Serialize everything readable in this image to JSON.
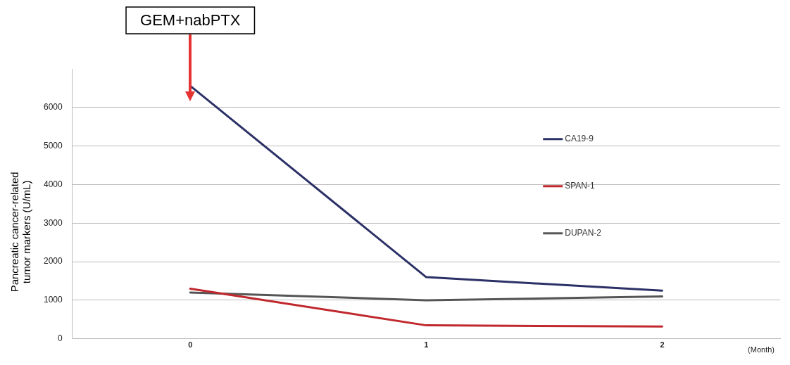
{
  "chart_data": {
    "type": "line",
    "ylabel": "Pancreatic cancer-related tumor markers (U/mL)",
    "xlabel": "(Month)",
    "x": [
      0,
      1,
      2
    ],
    "xlim": [
      -0.5,
      2.5
    ],
    "xticks": [
      0,
      1,
      2
    ],
    "ylim": [
      0,
      7000
    ],
    "yticks": [
      0,
      1000,
      2000,
      3000,
      4000,
      5000,
      6000
    ],
    "grid": "y",
    "legend": "right",
    "marker": "none",
    "line_style": "solid",
    "annotations": [
      {
        "text": "GEM+nabPTX",
        "x": 0
      }
    ],
    "series": [
      {
        "name": "CA19-9",
        "color": "#2b3166",
        "values": [
          6560,
          1600,
          1250
        ]
      },
      {
        "name": "SPAN-1",
        "color": "#c0282d",
        "values": [
          1300,
          350,
          320
        ]
      },
      {
        "name": "DUPAN-2",
        "color": "#555555",
        "values": [
          1200,
          1000,
          1100
        ]
      }
    ]
  }
}
